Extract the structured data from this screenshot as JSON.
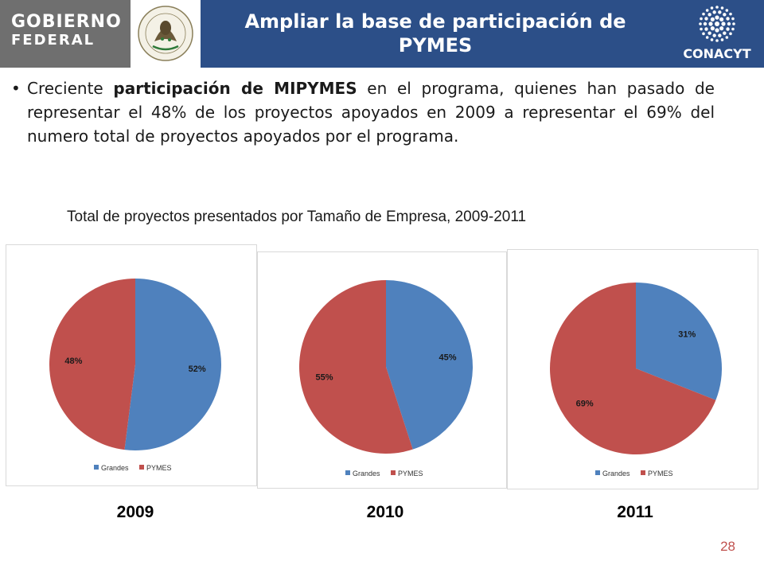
{
  "header": {
    "gobierno_line1": "GOBIERNO",
    "gobierno_line2": "FEDERAL",
    "seal_text": "ESTADOS UNIDOS MEXICANOS",
    "title_line1": "Ampliar la base de participación de",
    "title_line2": "PYMES",
    "conacyt_label": "CONACYT",
    "title_bg": "#2c4f88",
    "gobierno_bg": "#6f6f6f"
  },
  "bullet": {
    "marker": "•",
    "pre": "Creciente ",
    "bold": "participación de MIPYMES",
    "post": " en el programa, quienes han pasado de representar el 48% de los proyectos apoyados en 2009 a representar el 69% del numero total de proyectos apoyados por el programa."
  },
  "chart_title": "Total de proyectos presentados por Tamaño de Empresa, 2009-2011",
  "colors": {
    "grandes": "#4f81bd",
    "pymes": "#c0504d"
  },
  "chart_data": [
    {
      "type": "pie",
      "year": "2009",
      "title": "",
      "categories": [
        "Grandes",
        "PYMES"
      ],
      "values": [
        52,
        48
      ],
      "labels": [
        "52%",
        "48%"
      ],
      "legend": "bottom"
    },
    {
      "type": "pie",
      "year": "2010",
      "title": "",
      "categories": [
        "Grandes",
        "PYMES"
      ],
      "values": [
        45,
        55
      ],
      "labels": [
        "45%",
        "55%"
      ],
      "legend": "bottom"
    },
    {
      "type": "pie",
      "year": "2011",
      "title": "",
      "categories": [
        "Grandes",
        "PYMES"
      ],
      "values": [
        31,
        69
      ],
      "labels": [
        "31%",
        "69%"
      ],
      "legend": "bottom"
    }
  ],
  "page_number": "28"
}
